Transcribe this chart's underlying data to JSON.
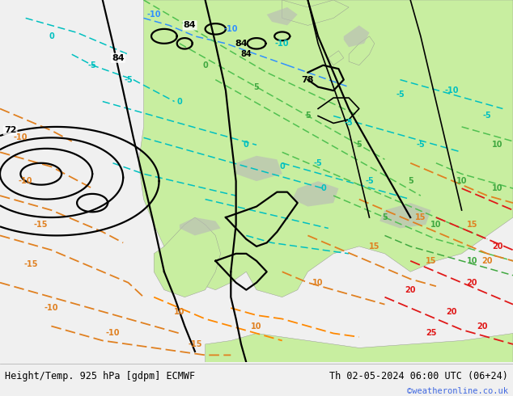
{
  "title_left": "Height/Temp. 925 hPa [gdpm] ECMWF",
  "title_right": "Th 02-05-2024 06:00 UTC (06+24)",
  "credit": "©weatheronline.co.uk",
  "fig_width": 6.34,
  "fig_height": 4.9,
  "dpi": 100,
  "title_fontsize": 8.5,
  "credit_color": "#4169e1",
  "credit_fontsize": 7.5,
  "bg_color": "#d8d8d8",
  "sea_color": "#d8d8d8",
  "land_color_light": "#c8eea0",
  "land_color_mid": "#b8e080",
  "gray_color": "#b0b0b0"
}
